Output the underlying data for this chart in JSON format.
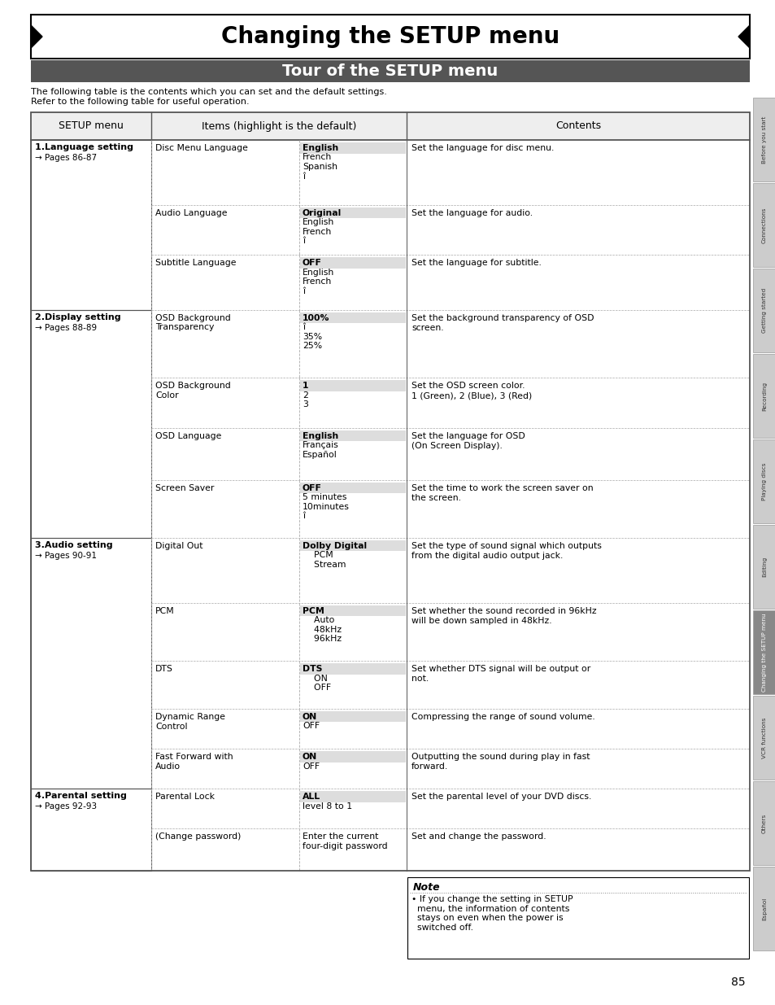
{
  "title": "Changing the SETUP menu",
  "subtitle": "Tour of the SETUP menu",
  "subtitle_bg": "#555555",
  "subtitle_fg": "#ffffff",
  "intro_line1": "The following table is the contents which you can set and the default settings.",
  "intro_line2": "Refer to the following table for useful operation.",
  "col_headers": [
    "SETUP menu",
    "Items (highlight is the default)",
    "Contents"
  ],
  "page_number": "85",
  "right_tabs": [
    "Before you start",
    "Connections",
    "Getting started",
    "Recording",
    "Playing discs",
    "Editing",
    "Changing the SETUP menu",
    "VCR functions",
    "Others",
    "Español"
  ],
  "note_title": "Note",
  "note_bullet": "• If you change the setting in SETUP\n  menu, the information of contents\n  stays on even when the power is\n  switched off.",
  "table_rows": [
    {
      "section": "1.Language setting\n→ Pages 86-87",
      "item": "Disc Menu Language",
      "options": [
        "English",
        "French",
        "Spanish",
        "î"
      ],
      "default_idx": 0,
      "contents": "Set the language for disc menu."
    },
    {
      "section": "",
      "item": "Audio Language",
      "options": [
        "Original",
        "English",
        "French",
        "î"
      ],
      "default_idx": 0,
      "contents": "Set the language for audio."
    },
    {
      "section": "",
      "item": "Subtitle Language",
      "options": [
        "OFF",
        "English",
        "French",
        "î"
      ],
      "default_idx": 0,
      "contents": "Set the language for subtitle."
    },
    {
      "section": "2.Display setting\n→ Pages 88-89",
      "item": "OSD Background\nTransparency",
      "options": [
        "100%",
        "î",
        "35%",
        "25%"
      ],
      "default_idx": 0,
      "contents": "Set the background transparency of OSD\nscreen."
    },
    {
      "section": "",
      "item": "OSD Background\nColor",
      "options": [
        "1",
        "2",
        "3"
      ],
      "default_idx": 0,
      "contents": "Set the OSD screen color.\n1 (Green), 2 (Blue), 3 (Red)"
    },
    {
      "section": "",
      "item": "OSD Language",
      "options": [
        "English",
        "Français",
        "Español"
      ],
      "default_idx": 0,
      "contents": "Set the language for OSD\n(On Screen Display)."
    },
    {
      "section": "",
      "item": "Screen Saver",
      "options": [
        "OFF",
        "5 minutes",
        "10minutes",
        "î"
      ],
      "default_idx": 0,
      "contents": "Set the time to work the screen saver on\nthe screen."
    },
    {
      "section": "3.Audio setting\n→ Pages 90-91",
      "item": "Digital Out",
      "options": [
        "Dolby Digital",
        "    PCM",
        "    Stream"
      ],
      "default_idx": 0,
      "contents": "Set the type of sound signal which outputs\nfrom the digital audio output jack."
    },
    {
      "section": "",
      "item": "PCM",
      "options": [
        "PCM",
        "    Auto",
        "    48kHz",
        "    96kHz"
      ],
      "default_idx": 0,
      "contents": "Set whether the sound recorded in 96kHz\nwill be down sampled in 48kHz.",
      "item_as_header": true
    },
    {
      "section": "",
      "item": "DTS",
      "options": [
        "DTS",
        "    ON",
        "    OFF"
      ],
      "default_idx": 0,
      "contents": "Set whether DTS signal will be output or\nnot.",
      "item_as_header": true
    },
    {
      "section": "",
      "item": "Dynamic Range\nControl",
      "options": [
        "ON",
        "OFF"
      ],
      "default_idx": 0,
      "contents": "Compressing the range of sound volume."
    },
    {
      "section": "",
      "item": "Fast Forward with\nAudio",
      "options": [
        "ON",
        "OFF"
      ],
      "default_idx": 0,
      "contents": "Outputting the sound during play in fast\nforward."
    },
    {
      "section": "4.Parental setting\n→ Pages 92-93",
      "item": "Parental Lock",
      "options": [
        "ALL",
        "level 8 to 1"
      ],
      "default_idx": 0,
      "contents": "Set the parental level of your DVD discs."
    },
    {
      "section": "",
      "item": "(Change password)",
      "options": [
        "Enter the current\nfour-digit password"
      ],
      "default_idx": -1,
      "contents": "Set and change the password."
    }
  ]
}
